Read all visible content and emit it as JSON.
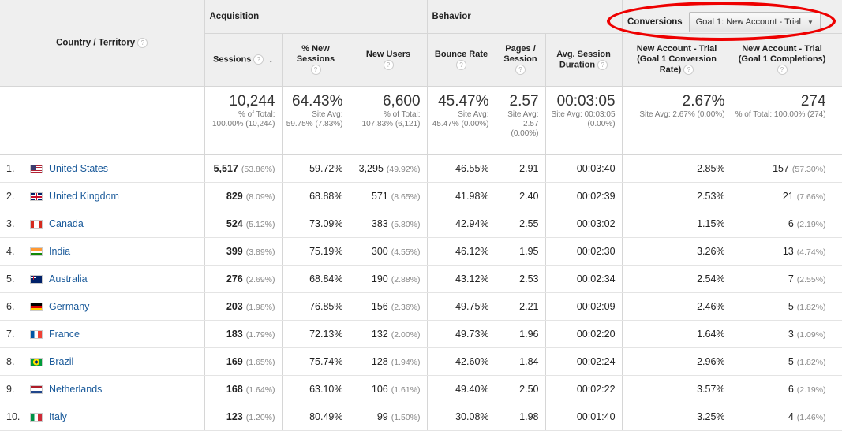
{
  "header": {
    "country_label": "Country / Territory",
    "acquisition": "Acquisition",
    "behavior": "Behavior",
    "conversions_label": "Conversions",
    "goal_select": "Goal 1: New Account - Trial",
    "columns": {
      "sessions": "Sessions",
      "new_sessions": "% New Sessions",
      "new_users": "New Users",
      "bounce": "Bounce Rate",
      "pages": "Pages / Session",
      "duration": "Avg. Session Duration",
      "conv_rate": "New Account - Trial (Goal 1 Conversion Rate)",
      "completions": "New Account - Trial (Goal 1 Completions)"
    },
    "help": "?",
    "sort_arrow": "↓"
  },
  "totals": {
    "sessions": "10,244",
    "sessions_sub": "% of Total: 100.00% (10,244)",
    "new_sessions": "64.43%",
    "new_sessions_sub": "Site Avg: 59.75% (7.83%)",
    "new_users": "6,600",
    "new_users_sub": "% of Total: 107.83% (6,121)",
    "bounce": "45.47%",
    "bounce_sub": "Site Avg: 45.47% (0.00%)",
    "pages": "2.57",
    "pages_sub": "Site Avg: 2.57 (0.00%)",
    "duration": "00:03:05",
    "duration_sub": "Site Avg: 00:03:05 (0.00%)",
    "conv_rate": "2.67%",
    "conv_rate_sub": "Site Avg: 2.67% (0.00%)",
    "completions": "274",
    "completions_sub": "% of Total: 100.00% (274)"
  },
  "rows": [
    {
      "idx": "1.",
      "country": "United States",
      "flag": "us",
      "sessions": "5,517",
      "sessions_pct": "(53.86%)",
      "new_sessions": "59.72%",
      "new_users": "3,295",
      "new_users_pct": "(49.92%)",
      "bounce": "46.55%",
      "pages": "2.91",
      "duration": "00:03:40",
      "conv_rate": "2.85%",
      "completions": "157",
      "completions_pct": "(57.30%)"
    },
    {
      "idx": "2.",
      "country": "United Kingdom",
      "flag": "gb",
      "sessions": "829",
      "sessions_pct": "(8.09%)",
      "new_sessions": "68.88%",
      "new_users": "571",
      "new_users_pct": "(8.65%)",
      "bounce": "41.98%",
      "pages": "2.40",
      "duration": "00:02:39",
      "conv_rate": "2.53%",
      "completions": "21",
      "completions_pct": "(7.66%)"
    },
    {
      "idx": "3.",
      "country": "Canada",
      "flag": "ca",
      "sessions": "524",
      "sessions_pct": "(5.12%)",
      "new_sessions": "73.09%",
      "new_users": "383",
      "new_users_pct": "(5.80%)",
      "bounce": "42.94%",
      "pages": "2.55",
      "duration": "00:03:02",
      "conv_rate": "1.15%",
      "completions": "6",
      "completions_pct": "(2.19%)"
    },
    {
      "idx": "4.",
      "country": "India",
      "flag": "in",
      "sessions": "399",
      "sessions_pct": "(3.89%)",
      "new_sessions": "75.19%",
      "new_users": "300",
      "new_users_pct": "(4.55%)",
      "bounce": "46.12%",
      "pages": "1.95",
      "duration": "00:02:30",
      "conv_rate": "3.26%",
      "completions": "13",
      "completions_pct": "(4.74%)"
    },
    {
      "idx": "5.",
      "country": "Australia",
      "flag": "au",
      "sessions": "276",
      "sessions_pct": "(2.69%)",
      "new_sessions": "68.84%",
      "new_users": "190",
      "new_users_pct": "(2.88%)",
      "bounce": "43.12%",
      "pages": "2.53",
      "duration": "00:02:34",
      "conv_rate": "2.54%",
      "completions": "7",
      "completions_pct": "(2.55%)"
    },
    {
      "idx": "6.",
      "country": "Germany",
      "flag": "de",
      "sessions": "203",
      "sessions_pct": "(1.98%)",
      "new_sessions": "76.85%",
      "new_users": "156",
      "new_users_pct": "(2.36%)",
      "bounce": "49.75%",
      "pages": "2.21",
      "duration": "00:02:09",
      "conv_rate": "2.46%",
      "completions": "5",
      "completions_pct": "(1.82%)"
    },
    {
      "idx": "7.",
      "country": "France",
      "flag": "fr",
      "sessions": "183",
      "sessions_pct": "(1.79%)",
      "new_sessions": "72.13%",
      "new_users": "132",
      "new_users_pct": "(2.00%)",
      "bounce": "49.73%",
      "pages": "1.96",
      "duration": "00:02:20",
      "conv_rate": "1.64%",
      "completions": "3",
      "completions_pct": "(1.09%)"
    },
    {
      "idx": "8.",
      "country": "Brazil",
      "flag": "br",
      "sessions": "169",
      "sessions_pct": "(1.65%)",
      "new_sessions": "75.74%",
      "new_users": "128",
      "new_users_pct": "(1.94%)",
      "bounce": "42.60%",
      "pages": "1.84",
      "duration": "00:02:24",
      "conv_rate": "2.96%",
      "completions": "5",
      "completions_pct": "(1.82%)"
    },
    {
      "idx": "9.",
      "country": "Netherlands",
      "flag": "nl",
      "sessions": "168",
      "sessions_pct": "(1.64%)",
      "new_sessions": "63.10%",
      "new_users": "106",
      "new_users_pct": "(1.61%)",
      "bounce": "49.40%",
      "pages": "2.50",
      "duration": "00:02:22",
      "conv_rate": "3.57%",
      "completions": "6",
      "completions_pct": "(2.19%)"
    },
    {
      "idx": "10.",
      "country": "Italy",
      "flag": "it",
      "sessions": "123",
      "sessions_pct": "(1.20%)",
      "new_sessions": "80.49%",
      "new_users": "99",
      "new_users_pct": "(1.50%)",
      "bounce": "30.08%",
      "pages": "1.98",
      "duration": "00:01:40",
      "conv_rate": "3.25%",
      "completions": "4",
      "completions_pct": "(1.46%)"
    }
  ],
  "colors": {
    "link": "#1a5a9a",
    "highlight": "#e00000"
  }
}
